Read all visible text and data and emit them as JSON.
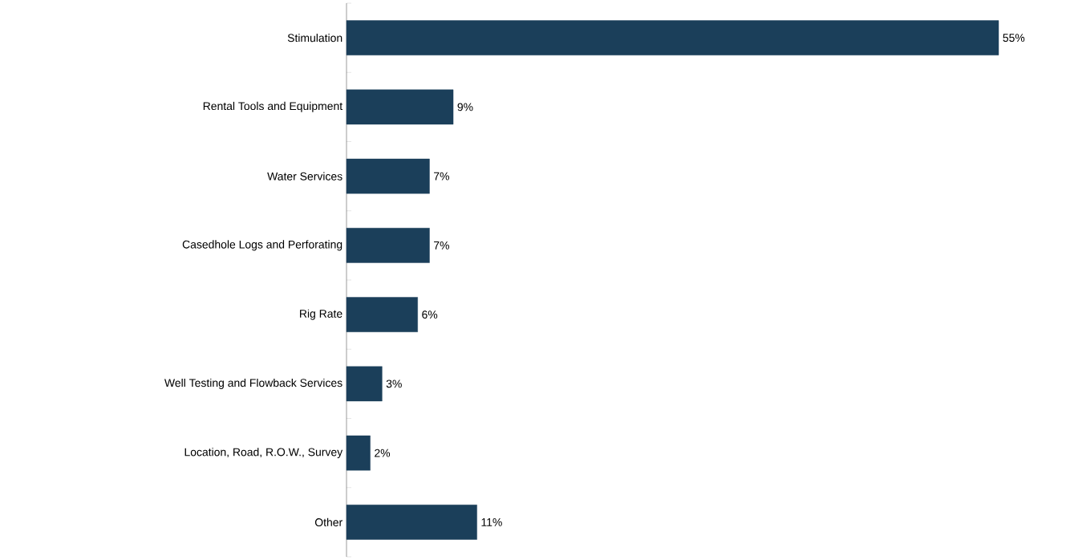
{
  "chart_data": {
    "type": "bar",
    "orientation": "horizontal",
    "categories": [
      "Stimulation",
      "Rental Tools and Equipment",
      "Water Services",
      "Casedhole Logs and Perforating",
      "Rig Rate",
      "Well Testing and Flowback Services",
      "Location, Road, R.O.W., Survey",
      "Other"
    ],
    "values": [
      55,
      9,
      7,
      7,
      6,
      3,
      2,
      11
    ],
    "value_labels": [
      "55%",
      "9%",
      "7%",
      "7%",
      "6%",
      "3%",
      "2%",
      "11%"
    ],
    "color": "#1b3f5a"
  }
}
